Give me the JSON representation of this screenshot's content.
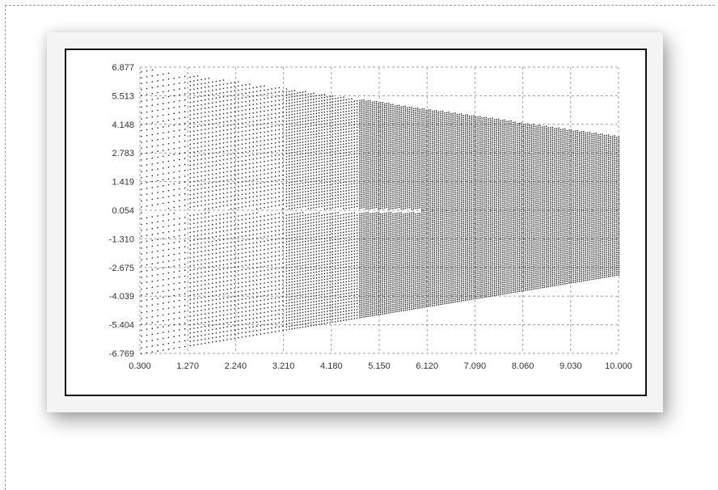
{
  "chart_data": {
    "type": "scatter",
    "title": "",
    "xlabel": "",
    "ylabel": "",
    "xlim": [
      0.3,
      10.0
    ],
    "ylim": [
      -6.769,
      6.877
    ],
    "grid": true,
    "x_ticks": [
      "0.300",
      "1.270",
      "2.240",
      "3.210",
      "4.180",
      "5.150",
      "6.120",
      "7.090",
      "8.060",
      "9.030",
      "10.000"
    ],
    "y_ticks": [
      "6.877",
      "5.513",
      "4.148",
      "2.783",
      "1.419",
      "0.054",
      "-1.310",
      "-2.675",
      "-4.039",
      "-5.404",
      "-6.769"
    ],
    "envelope": {
      "upper": [
        [
          0.3,
          6.877
        ],
        [
          10.0,
          3.6
        ]
      ],
      "lower": [
        [
          0.3,
          -6.769
        ],
        [
          10.0,
          -3.0
        ]
      ]
    },
    "point_color": "#1a1a1a"
  }
}
